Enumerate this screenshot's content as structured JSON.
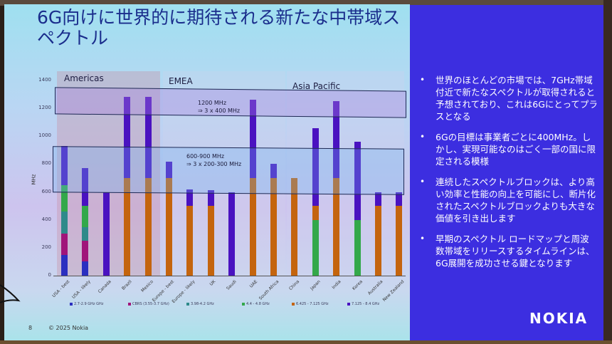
{
  "slide": {
    "title": "6G向けに世界的に期待される新たな中帯域スペクトル",
    "page_number": "8",
    "copyright": "© 2025 Nokia",
    "logo": "NOKIA"
  },
  "regions": [
    {
      "label": "Americas",
      "color": "#d9a0b0"
    },
    {
      "label": "EMEA",
      "color": "#c8c8e8"
    },
    {
      "label": "Asia Pacific",
      "color": "#c8c8e8"
    }
  ],
  "bands": [
    {
      "label_line1": "1200 MHz",
      "label_line2": "⇒ 3 x 400 MHz"
    },
    {
      "label_line1": "600-900 MHz",
      "label_line2": "⇒ 3 x 200-300 MHz"
    }
  ],
  "bullets": [
    {
      "text": "世界のほとんどの市場では、7GHz帯域付近で新たなスペクトルが取得されると予想されており、これは6Gにとってプラスとなる"
    },
    {
      "text": "6Gの目標は事業者ごとに400MHz。しかし、実現可能なのはごく一部の国に限定される模様"
    },
    {
      "text": "連続したスペクトルブロックは、より高い効率と性能の向上を可能にし、断片化されたスペクトルブロックよりも大きな価値を引き出します"
    },
    {
      "text": "早期のスペクトル ロードマップと周波数帯域をリリースするタイムラインは、6G展開を成功させる鍵となります"
    }
  ],
  "chart_data": {
    "type": "bar",
    "stacked": true,
    "title": "",
    "xlabel": "",
    "ylabel": "MHz",
    "ylim": [
      0,
      1400
    ],
    "yticks": [
      "0",
      "200",
      "400",
      "600",
      "800",
      "1000",
      "1200",
      "1400"
    ],
    "categories": [
      "USA - best",
      "USA - likely",
      "Canada",
      "Brazil",
      "Mexico",
      "Europe - best",
      "Europe - likely",
      "UK",
      "Saudi",
      "UAE",
      "South Africa",
      "China",
      "Japan",
      "India",
      "Korea",
      "Australia",
      "New Zealand"
    ],
    "series": [
      {
        "name": "2.7-2.9 GHz GHz",
        "color": "#2b2fc0",
        "values": [
          150,
          100,
          0,
          0,
          0,
          0,
          0,
          0,
          0,
          0,
          0,
          0,
          0,
          0,
          0,
          0,
          0
        ]
      },
      {
        "name": "CBRS (3.55-3.7 GHz)",
        "color": "#a0157a",
        "values": [
          150,
          150,
          0,
          0,
          0,
          0,
          0,
          0,
          0,
          0,
          0,
          0,
          0,
          0,
          0,
          0,
          0
        ]
      },
      {
        "name": "3.98-4.2 GHz",
        "color": "#2e8a8a",
        "values": [
          160,
          100,
          0,
          0,
          0,
          0,
          0,
          0,
          0,
          0,
          0,
          0,
          0,
          0,
          0,
          0,
          0
        ]
      },
      {
        "name": "4.4 - 4.8 GHz",
        "color": "#33a84a",
        "values": [
          190,
          150,
          0,
          0,
          0,
          0,
          0,
          0,
          0,
          0,
          0,
          0,
          400,
          0,
          400,
          0,
          0
        ]
      },
      {
        "name": "6.425 - 7.125 GHz",
        "color": "#c4640e",
        "values": [
          0,
          0,
          0,
          700,
          700,
          700,
          500,
          500,
          0,
          700,
          700,
          700,
          100,
          700,
          0,
          500,
          500
        ]
      },
      {
        "name": "7.125 - 8.4 GHz",
        "color": "#4a12c0",
        "values": [
          280,
          270,
          600,
          580,
          580,
          115,
          120,
          115,
          600,
          560,
          100,
          0,
          560,
          550,
          560,
          100,
          100
        ]
      }
    ],
    "annotations": [
      {
        "text": "1200 MHz ⇒ 3 x 400 MHz",
        "range": [
          1150,
          1330
        ]
      },
      {
        "text": "600-900 MHz ⇒ 3 x 200-300 MHz",
        "range": [
          590,
          910
        ]
      }
    ],
    "region_groups": [
      {
        "label": "Americas",
        "categories": [
          "USA - best",
          "USA - likely",
          "Canada",
          "Brazil",
          "Mexico"
        ]
      },
      {
        "label": "EMEA",
        "categories": [
          "Europe - best",
          "Europe - likely",
          "UK",
          "Saudi",
          "UAE",
          "South Africa"
        ]
      },
      {
        "label": "Asia Pacific",
        "categories": [
          "China",
          "Japan",
          "India",
          "Korea",
          "Australia",
          "New Zealand"
        ]
      }
    ],
    "grid": false,
    "legend_position": "bottom"
  }
}
